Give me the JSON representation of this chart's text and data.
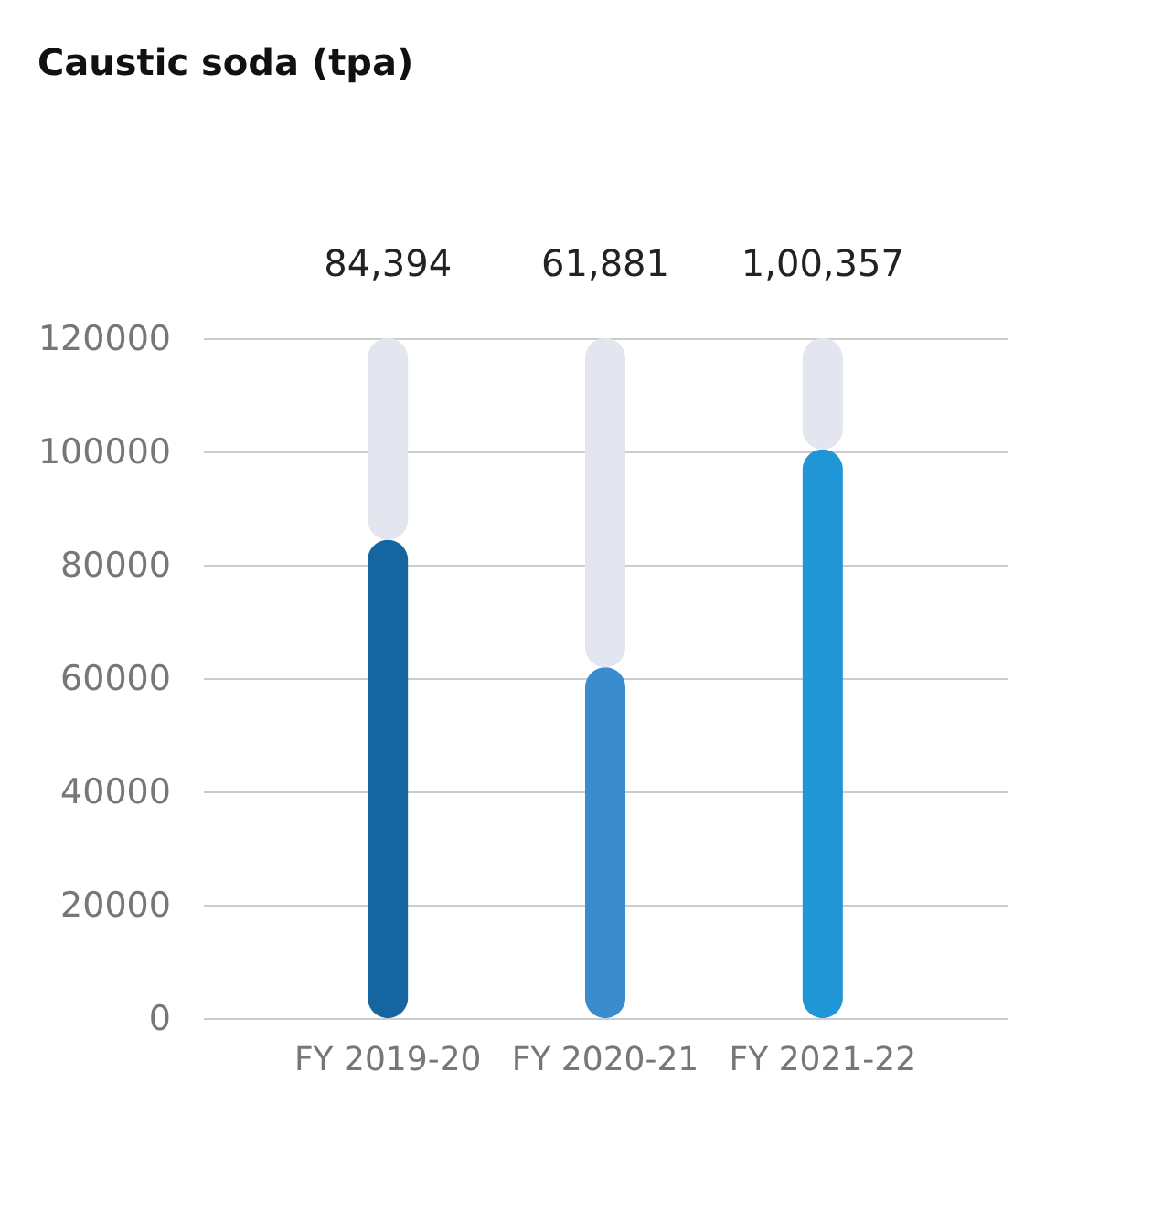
{
  "chart_data": {
    "type": "bar",
    "title": "Caustic soda (tpa)",
    "stacked": true,
    "categories": [
      "FY 2019-20",
      "FY 2020-21",
      "FY 2021-22"
    ],
    "series": [
      {
        "colors": [
          "#1565a0",
          "#3a8ccc",
          "#2196d6"
        ],
        "values": [
          84394,
          61881,
          100357
        ],
        "value_labels": [
          "84,394",
          "61,881",
          "1,00,357"
        ]
      },
      {
        "color": "#e3e5ef",
        "values": [
          35606,
          58119,
          19643
        ]
      }
    ],
    "ylim": [
      0,
      120000
    ],
    "yticks": [
      0,
      20000,
      40000,
      60000,
      80000,
      100000,
      120000
    ],
    "grid": "y"
  }
}
